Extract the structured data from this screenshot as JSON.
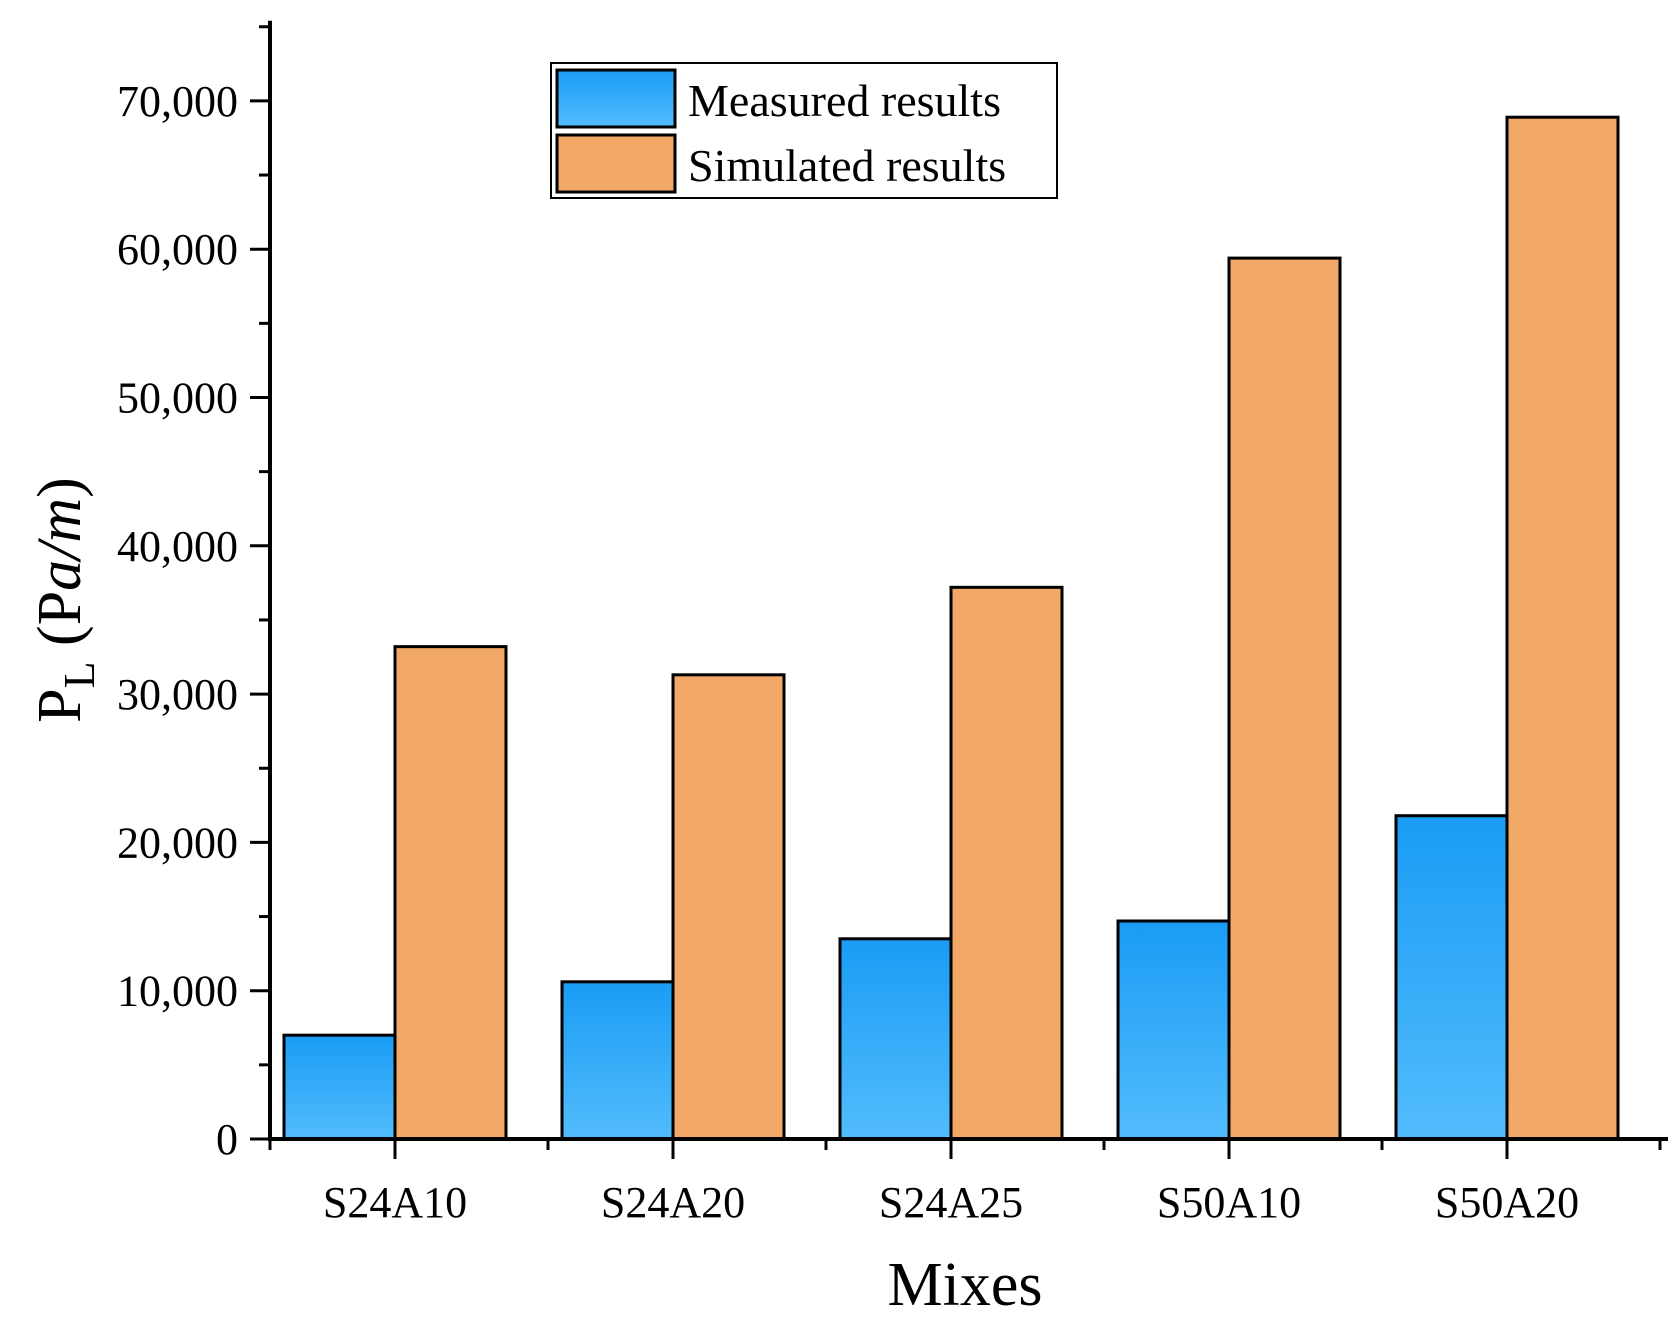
{
  "chart_data": {
    "type": "bar",
    "title": "",
    "xlabel": "Mixes",
    "ylabel": {
      "main": "P",
      "subscript": "L",
      "unit_open": " (P",
      "unit_italic": "a/m",
      "unit_close": ")"
    },
    "categories": [
      "S24A10",
      "S24A20",
      "S24A25",
      "S50A10",
      "S50A20"
    ],
    "series": [
      {
        "name": "Measured results",
        "values": [
          7000,
          10600,
          13500,
          14700,
          21800
        ]
      },
      {
        "name": "Simulated results",
        "values": [
          33200,
          31300,
          37200,
          59400,
          68900
        ]
      }
    ],
    "ylim": [
      0,
      75000
    ],
    "yticks": [
      0,
      10000,
      20000,
      30000,
      40000,
      50000,
      60000,
      70000
    ],
    "ytick_labels": [
      "0",
      "10,000",
      "20,000",
      "30,000",
      "40,000",
      "50,000",
      "60,000",
      "70,000"
    ],
    "legend_position": "top-center",
    "grid": false,
    "colors": {
      "measured_top": "#1a9cf5",
      "measured_bottom": "#52bcfc",
      "simulated": "#f2a866",
      "outline": "#000000"
    }
  }
}
